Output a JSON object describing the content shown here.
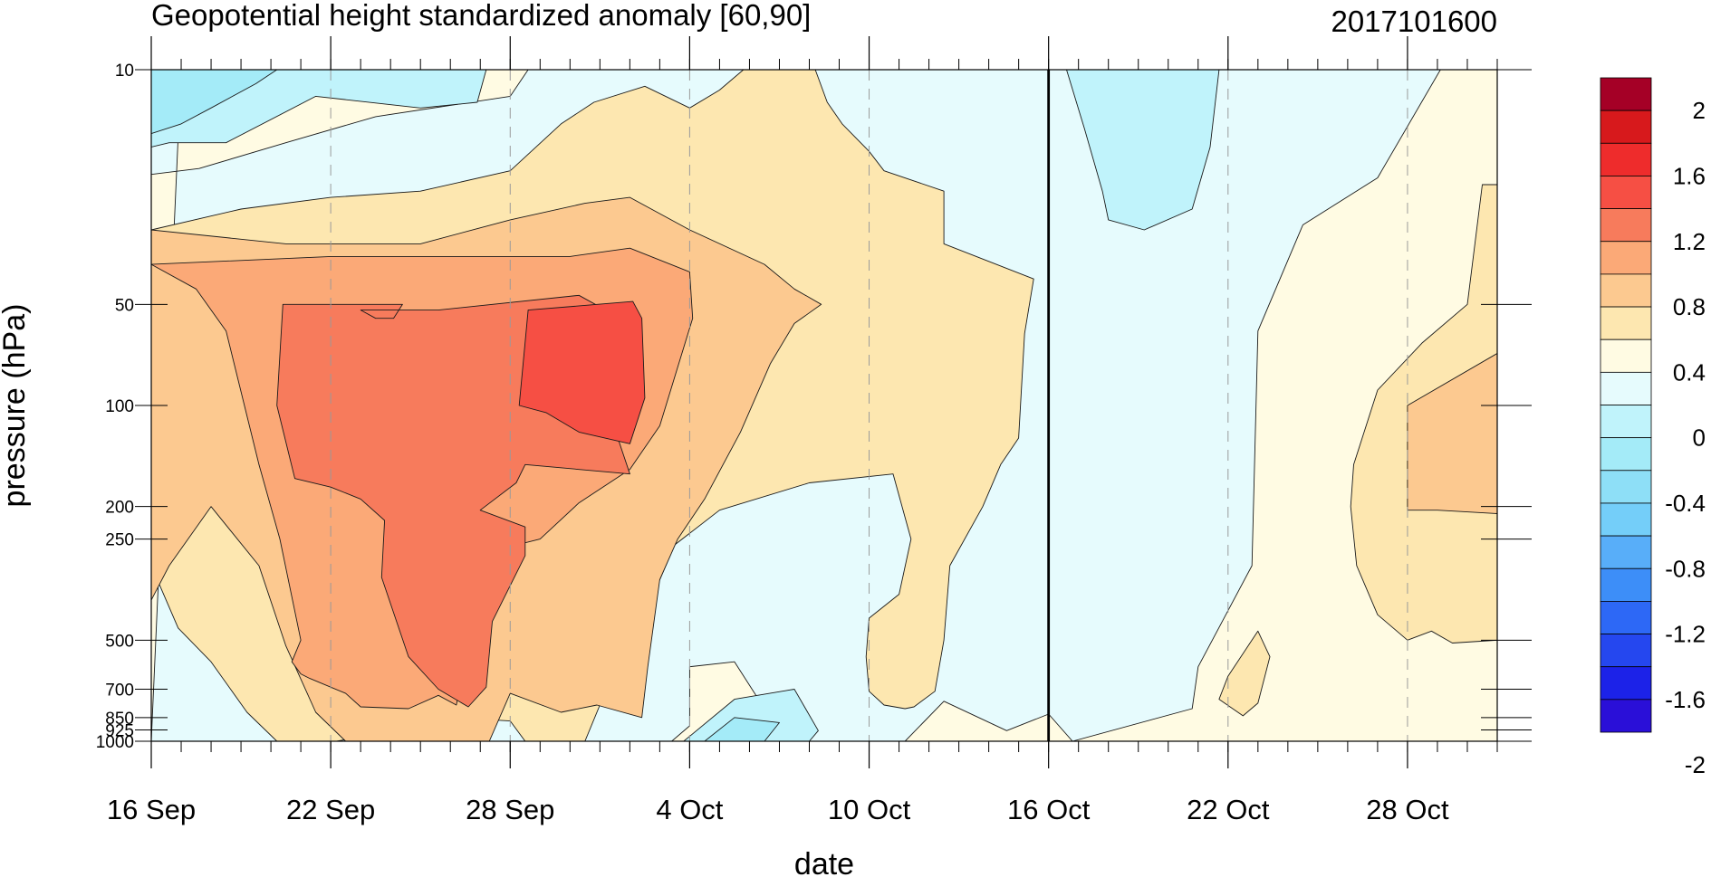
{
  "chart_data": {
    "type": "heatmap",
    "title": "Geopotential height standardized anomaly [60,90]",
    "timestamp": "2017101600",
    "xlabel": "date",
    "ylabel": "pressure (hPa)",
    "x_ticks": [
      {
        "day": 0,
        "label": "16 Sep"
      },
      {
        "day": 6,
        "label": "22 Sep"
      },
      {
        "day": 12,
        "label": "28 Sep"
      },
      {
        "day": 18,
        "label": "4 Oct"
      },
      {
        "day": 24,
        "label": "10 Oct"
      },
      {
        "day": 30,
        "label": "16 Oct"
      },
      {
        "day": 36,
        "label": "22 Oct"
      },
      {
        "day": 42,
        "label": "28 Oct"
      }
    ],
    "x_range_days": [
      0,
      45
    ],
    "y_ticks": [
      {
        "value": 10,
        "label": "10"
      },
      {
        "value": 50,
        "label": "50"
      },
      {
        "value": 100,
        "label": "100"
      },
      {
        "value": 200,
        "label": "200"
      },
      {
        "value": 250,
        "label": "250"
      },
      {
        "value": 500,
        "label": "500"
      },
      {
        "value": 700,
        "label": "700"
      },
      {
        "value": 850,
        "label": "850"
      },
      {
        "value": 925,
        "label": "925"
      },
      {
        "value": 1000,
        "label": "1000"
      }
    ],
    "y_scale": "log",
    "y_range": [
      1000,
      10
    ],
    "current_day_line": 30,
    "colorbar": {
      "labels": [
        "2",
        "1.6",
        "1.2",
        "0.8",
        "0.4",
        "0",
        "-0.4",
        "-0.8",
        "-1.2",
        "-1.6",
        "-2"
      ],
      "colors": [
        "#a50026",
        "#d7191c",
        "#ee2c2c",
        "#f64f44",
        "#f77b5c",
        "#fba977",
        "#fcc990",
        "#fde7b0",
        "#fffbe3",
        "#e6fbfd",
        "#c0f3fb",
        "#a4ebf8",
        "#8edff7",
        "#74cef9",
        "#58aef9",
        "#3d8ef8",
        "#2d68f6",
        "#2547ef",
        "#1c22e8",
        "#2a0fd8"
      ]
    },
    "regions": [
      {
        "level": 0,
        "color": "#e6fbfd",
        "pts": [
          [
            0,
            10
          ],
          [
            45,
            10
          ],
          [
            45,
            1000
          ],
          [
            0,
            1000
          ]
        ]
      },
      {
        "level": 1,
        "color": "#fffbe3",
        "pts": [
          [
            1,
            10
          ],
          [
            12.6,
            10
          ],
          [
            12,
            12
          ],
          [
            7.5,
            13.8
          ],
          [
            4.5,
            16.5
          ],
          [
            1.6,
            19.7
          ],
          [
            0,
            20.5
          ],
          [
            0,
            1000
          ],
          [
            45,
            1000
          ],
          [
            45,
            10
          ],
          [
            43.1,
            10
          ],
          [
            41,
            21
          ],
          [
            38.5,
            29
          ],
          [
            37,
            60
          ],
          [
            36.8,
            300
          ],
          [
            35,
            600
          ],
          [
            34.8,
            800
          ],
          [
            30.8,
            1000
          ],
          [
            30,
            830
          ],
          [
            28.6,
            930
          ],
          [
            26.5,
            760
          ],
          [
            25.2,
            1000
          ],
          [
            21,
            1000
          ],
          [
            20.5,
            800
          ],
          [
            19.5,
            580
          ],
          [
            18,
            600
          ],
          [
            18,
            900
          ],
          [
            17.4,
            1000
          ],
          [
            0,
            1000
          ]
        ]
      },
      {
        "level": 2,
        "color": "#fde7b0",
        "pts": [
          [
            0,
            30
          ],
          [
            3,
            26
          ],
          [
            6,
            24
          ],
          [
            9,
            23
          ],
          [
            12,
            20
          ],
          [
            13.7,
            14.5
          ],
          [
            14.8,
            12.5
          ],
          [
            16.5,
            11.2
          ],
          [
            18,
            13
          ],
          [
            19,
            11.5
          ],
          [
            19.8,
            10
          ],
          [
            22.2,
            10
          ],
          [
            22.6,
            12.5
          ],
          [
            23.1,
            14.5
          ],
          [
            24,
            17.5
          ],
          [
            24.5,
            20
          ],
          [
            26.5,
            23
          ],
          [
            26.5,
            33
          ],
          [
            29.5,
            42
          ],
          [
            29.2,
            61
          ],
          [
            29,
            125
          ],
          [
            28.4,
            150
          ],
          [
            27.8,
            200
          ],
          [
            26.7,
            300
          ],
          [
            26.5,
            500
          ],
          [
            26.2,
            710
          ],
          [
            25.5,
            790
          ],
          [
            25.2,
            800
          ],
          [
            24.5,
            780
          ],
          [
            24,
            710
          ],
          [
            23.9,
            560
          ],
          [
            24,
            430
          ],
          [
            25,
            365
          ],
          [
            25.4,
            250
          ],
          [
            24.8,
            160
          ],
          [
            22,
            170
          ],
          [
            19,
            205
          ],
          [
            17.5,
            260
          ],
          [
            16.5,
            420
          ],
          [
            15,
            780
          ],
          [
            14.5,
            1000
          ],
          [
            12.5,
            1000
          ],
          [
            12,
            870
          ],
          [
            10,
            850
          ],
          [
            8,
            935
          ],
          [
            6.2,
            1000
          ],
          [
            4.2,
            1000
          ],
          [
            3.2,
            820
          ],
          [
            2,
            580
          ],
          [
            0.9,
            460
          ],
          [
            0,
            300
          ]
        ]
      },
      {
        "level": 2,
        "color": "#fde7b0",
        "pts": [
          [
            44.5,
            22
          ],
          [
            45,
            22
          ],
          [
            45,
            500
          ],
          [
            43.5,
            510
          ],
          [
            42.8,
            470
          ],
          [
            42,
            500
          ],
          [
            41,
            420
          ],
          [
            40.3,
            300
          ],
          [
            40.1,
            200
          ],
          [
            40.2,
            150
          ],
          [
            41,
            90
          ],
          [
            42.5,
            65
          ],
          [
            44,
            50
          ]
        ]
      },
      {
        "level": 2,
        "color": "#fde7b0",
        "pts": [
          [
            36,
            640
          ],
          [
            37,
            470
          ],
          [
            37.4,
            560
          ],
          [
            37,
            770
          ],
          [
            36.5,
            840
          ],
          [
            35.7,
            750
          ]
        ]
      },
      {
        "level": 3,
        "color": "#fcc990",
        "pts": [
          [
            0,
            30
          ],
          [
            4.5,
            33
          ],
          [
            9,
            33
          ],
          [
            12,
            28
          ],
          [
            14.5,
            25
          ],
          [
            16,
            24
          ],
          [
            18,
            30
          ],
          [
            20.5,
            38
          ],
          [
            21.5,
            45
          ],
          [
            22.4,
            50
          ],
          [
            21.5,
            57
          ],
          [
            20.7,
            75
          ],
          [
            19.7,
            120
          ],
          [
            18.5,
            190
          ],
          [
            17.6,
            250
          ],
          [
            17,
            330
          ],
          [
            16.6,
            600
          ],
          [
            16.4,
            850
          ],
          [
            14.9,
            780
          ],
          [
            13.7,
            820
          ],
          [
            12,
            720
          ],
          [
            11.3,
            1000
          ],
          [
            6.5,
            1000
          ],
          [
            5.5,
            820
          ],
          [
            4.5,
            520
          ],
          [
            3.6,
            300
          ],
          [
            2,
            200
          ],
          [
            0.6,
            300
          ],
          [
            0,
            380
          ]
        ]
      },
      {
        "level": 3,
        "color": "#fcc990",
        "pts": [
          [
            42,
            100
          ],
          [
            45,
            70
          ],
          [
            45,
            210
          ],
          [
            43,
            205
          ],
          [
            42,
            205
          ]
        ]
      },
      {
        "level": 4,
        "color": "#fba977",
        "pts": [
          [
            0,
            38
          ],
          [
            6,
            36
          ],
          [
            10,
            36
          ],
          [
            14,
            36
          ],
          [
            16,
            34
          ],
          [
            18,
            40
          ],
          [
            18.1,
            55
          ],
          [
            17,
            115
          ],
          [
            16,
            155
          ],
          [
            14.3,
            195
          ],
          [
            13,
            250
          ],
          [
            11.5,
            270
          ],
          [
            10.7,
            480
          ],
          [
            10.2,
            780
          ],
          [
            9.6,
            730
          ],
          [
            8.6,
            800
          ],
          [
            7,
            790
          ],
          [
            6.5,
            720
          ],
          [
            5.3,
            650
          ],
          [
            5,
            630
          ],
          [
            4.7,
            580
          ],
          [
            5,
            500
          ],
          [
            4.3,
            250
          ],
          [
            3.6,
            150
          ],
          [
            2.5,
            60
          ],
          [
            1.5,
            45
          ]
        ]
      },
      {
        "level": 5,
        "color": "#f77b5c",
        "pts": [
          [
            4.4,
            50
          ],
          [
            8.4,
            50
          ],
          [
            8.1,
            55
          ],
          [
            7.5,
            55
          ],
          [
            7,
            52
          ],
          [
            9.6,
            52
          ],
          [
            14.3,
            47
          ],
          [
            16,
            57
          ],
          [
            15.6,
            125
          ],
          [
            16,
            160
          ],
          [
            12.5,
            150
          ],
          [
            12.2,
            170
          ],
          [
            11,
            205
          ],
          [
            12.5,
            230
          ],
          [
            12.5,
            280
          ],
          [
            11.4,
            440
          ],
          [
            11.2,
            690
          ],
          [
            10.6,
            790
          ],
          [
            9.6,
            700
          ],
          [
            8.6,
            560
          ],
          [
            7.7,
            325
          ],
          [
            7.8,
            220
          ],
          [
            7,
            190
          ],
          [
            6,
            175
          ],
          [
            4.8,
            165
          ],
          [
            4.2,
            100
          ]
        ]
      },
      {
        "level": 6,
        "color": "#f64f44",
        "pts": [
          [
            12.6,
            52
          ],
          [
            16.1,
            49
          ],
          [
            16.4,
            55
          ],
          [
            16.5,
            95
          ],
          [
            16,
            130
          ],
          [
            14.3,
            120
          ],
          [
            13.2,
            105
          ],
          [
            12.3,
            100
          ]
        ]
      },
      {
        "level": -1,
        "color": "#c0f3fb",
        "pts": [
          [
            0,
            10
          ],
          [
            11.2,
            10
          ],
          [
            10.9,
            12.5
          ],
          [
            9,
            13
          ],
          [
            5.5,
            12
          ],
          [
            2.5,
            16.5
          ],
          [
            0.6,
            16.5
          ],
          [
            0,
            17
          ]
        ]
      },
      {
        "level": -1,
        "color": "#c0f3fb",
        "pts": [
          [
            30.6,
            10
          ],
          [
            35.7,
            10
          ],
          [
            35.4,
            17
          ],
          [
            34.8,
            26
          ],
          [
            33.2,
            30
          ],
          [
            32,
            28
          ],
          [
            31.8,
            23
          ],
          [
            31.2,
            15
          ]
        ]
      },
      {
        "level": -1,
        "color": "#c0f3fb",
        "pts": [
          [
            17.8,
            1000
          ],
          [
            19.5,
            750
          ],
          [
            21.5,
            700
          ],
          [
            22.3,
            930
          ],
          [
            22,
            1000
          ]
        ]
      },
      {
        "level": -2,
        "color": "#a4ebf8",
        "pts": [
          [
            0,
            10
          ],
          [
            4.2,
            10
          ],
          [
            3.5,
            11
          ],
          [
            2,
            13
          ],
          [
            1,
            14.5
          ],
          [
            0,
            15.5
          ]
        ]
      },
      {
        "level": -2,
        "color": "#a4ebf8",
        "pts": [
          [
            18.5,
            1000
          ],
          [
            19.5,
            850
          ],
          [
            21,
            880
          ],
          [
            20.5,
            1000
          ]
        ]
      }
    ]
  }
}
